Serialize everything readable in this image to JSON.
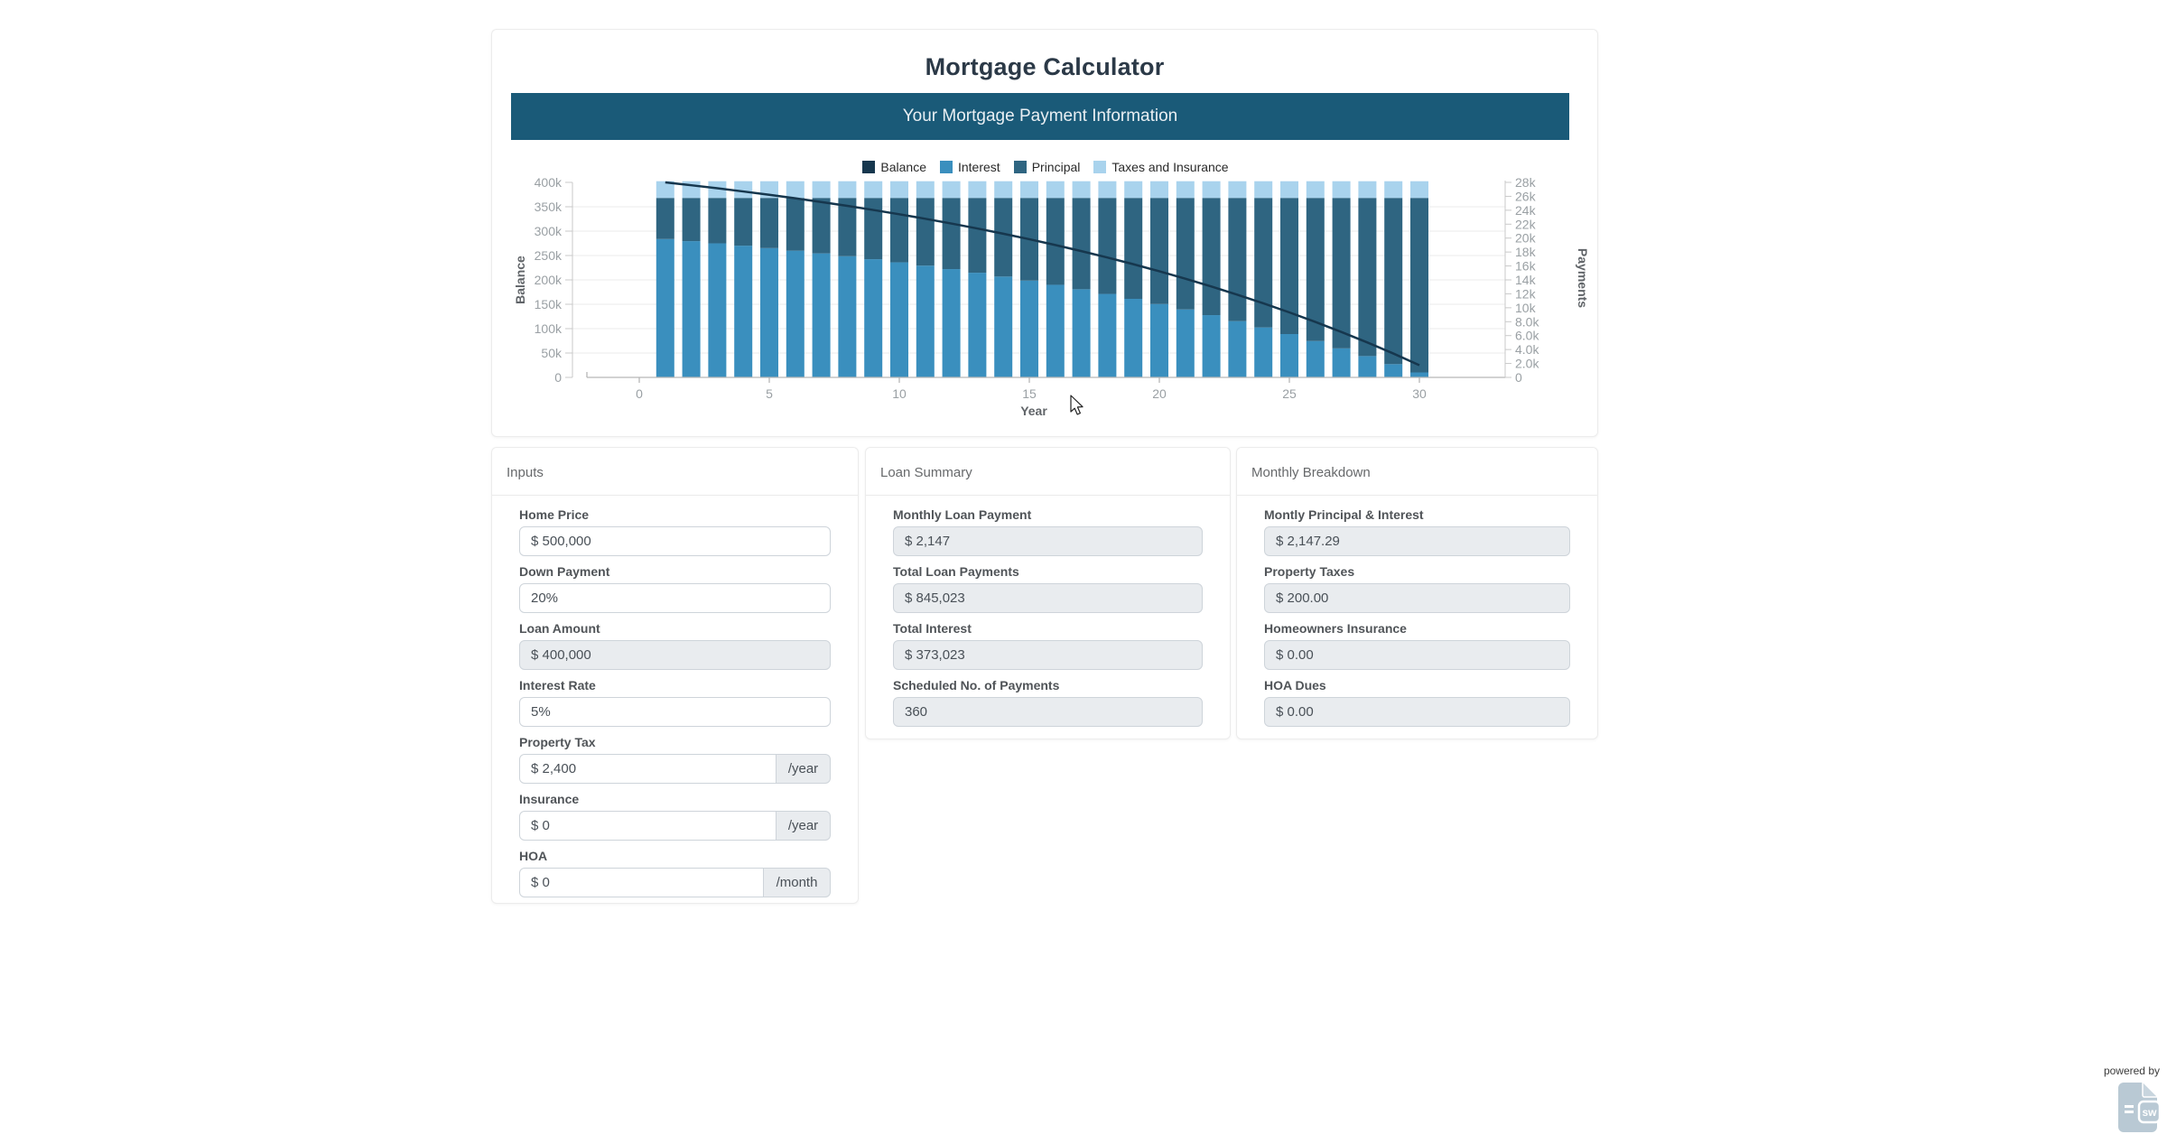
{
  "title": "Mortgage Calculator",
  "banner": "Your Mortgage Payment Information",
  "panels": {
    "inputs": {
      "title": "Inputs",
      "fields": [
        {
          "label": "Home Price",
          "value": "$ 500,000",
          "readonly": false
        },
        {
          "label": "Down Payment",
          "value": "20%",
          "readonly": false
        },
        {
          "label": "Loan Amount",
          "value": "$ 400,000",
          "readonly": true
        },
        {
          "label": "Interest Rate",
          "value": "5%",
          "readonly": false
        },
        {
          "label": "Property Tax",
          "value": "$ 2,400",
          "readonly": false,
          "addon": "/year"
        },
        {
          "label": "Insurance",
          "value": "$ 0",
          "readonly": false,
          "addon": "/year"
        },
        {
          "label": "HOA",
          "value": "$ 0",
          "readonly": false,
          "addon": "/month"
        }
      ]
    },
    "loan_summary": {
      "title": "Loan Summary",
      "fields": [
        {
          "label": "Monthly Loan Payment",
          "value": "$ 2,147",
          "readonly": true
        },
        {
          "label": "Total Loan Payments",
          "value": "$ 845,023",
          "readonly": true
        },
        {
          "label": "Total Interest",
          "value": "$ 373,023",
          "readonly": true
        },
        {
          "label": "Scheduled No. of Payments",
          "value": "360",
          "readonly": true
        }
      ]
    },
    "monthly_breakdown": {
      "title": "Monthly Breakdown",
      "fields": [
        {
          "label": "Montly Principal & Interest",
          "value": "$ 2,147.29",
          "readonly": true
        },
        {
          "label": "Property Taxes",
          "value": "$ 200.00",
          "readonly": true
        },
        {
          "label": "Homeowners Insurance",
          "value": "$ 0.00",
          "readonly": true
        },
        {
          "label": "HOA Dues",
          "value": "$ 0.00",
          "readonly": true
        }
      ]
    }
  },
  "powered_by": "powered by",
  "powered_icon_text": "sw",
  "chart_data": {
    "type": "bar+line",
    "xlabel": "Year",
    "ylabel_left": "Balance",
    "ylabel_right": "Payments",
    "x_years": [
      1,
      2,
      3,
      4,
      5,
      6,
      7,
      8,
      9,
      10,
      11,
      12,
      13,
      14,
      15,
      16,
      17,
      18,
      19,
      20,
      21,
      22,
      23,
      24,
      25,
      26,
      27,
      28,
      29,
      30
    ],
    "x_ticks": [
      0,
      5,
      10,
      15,
      20,
      25,
      30
    ],
    "left_axis": {
      "min": 0,
      "max": 400000,
      "tick_step": 50000,
      "tick_labels": [
        "0",
        "50k",
        "100k",
        "150k",
        "200k",
        "250k",
        "300k",
        "350k",
        "400k"
      ]
    },
    "right_axis": {
      "min": 0,
      "max": 28000,
      "tick_step": 2000,
      "tick_labels": [
        "0",
        "2.0k",
        "4.0k",
        "6.0k",
        "8.0k",
        "10k",
        "12k",
        "14k",
        "16k",
        "18k",
        "20k",
        "22k",
        "24k",
        "26k",
        "28k"
      ]
    },
    "legend_position": "top-center",
    "grid": "horizontal-left-axis",
    "series": [
      {
        "name": "Balance",
        "type": "line",
        "axis": "left",
        "color": "#16374e",
        "values": [
          400000,
          394098,
          387895,
          381375,
          374520,
          367316,
          359742,
          351781,
          343413,
          334616,
          325369,
          315649,
          305432,
          294692,
          283403,
          271536,
          259062,
          245950,
          232167,
          217679,
          202449,
          186441,
          169613,
          151924,
          133331,
          113785,
          93239,
          71642,
          48939,
          25075
        ]
      },
      {
        "name": "Interest",
        "type": "bar",
        "axis": "right",
        "color": "#3a8fbe",
        "values": [
          19865,
          19564,
          19247,
          18912,
          18563,
          18193,
          17806,
          17399,
          16970,
          16520,
          16047,
          15550,
          15027,
          14478,
          13900,
          13293,
          12655,
          11984,
          11279,
          10537,
          9759,
          8939,
          8078,
          7174,
          6221,
          5221,
          4170,
          3064,
          1903,
          711
        ]
      },
      {
        "name": "Principal",
        "type": "bar",
        "axis": "right",
        "color": "#2f6581",
        "values": [
          5902,
          6203,
          6520,
          6855,
          7204,
          7574,
          7961,
          8368,
          8797,
          9247,
          9720,
          10217,
          10740,
          11289,
          11867,
          12474,
          13112,
          13783,
          14488,
          15230,
          16008,
          16828,
          17689,
          18593,
          19546,
          20546,
          21597,
          22703,
          23864,
          25056
        ]
      },
      {
        "name": "Taxes and Insurance",
        "type": "bar",
        "axis": "right",
        "color": "#a9d3ed",
        "values": [
          2400,
          2400,
          2400,
          2400,
          2400,
          2400,
          2400,
          2400,
          2400,
          2400,
          2400,
          2400,
          2400,
          2400,
          2400,
          2400,
          2400,
          2400,
          2400,
          2400,
          2400,
          2400,
          2400,
          2400,
          2400,
          2400,
          2400,
          2400,
          2400,
          2400
        ]
      }
    ]
  }
}
